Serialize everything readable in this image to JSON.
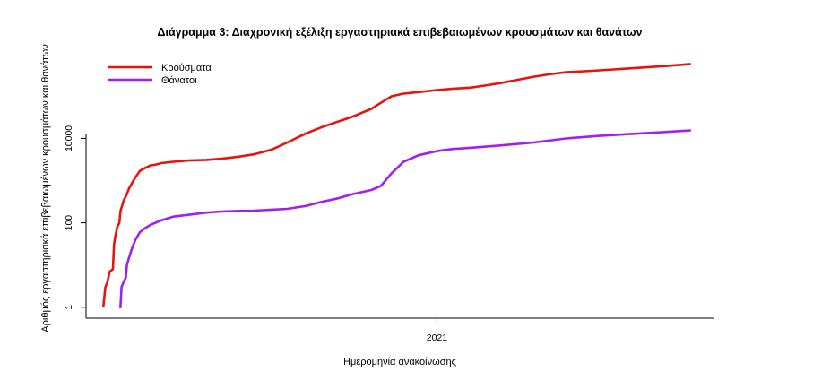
{
  "chart_data": {
    "type": "line",
    "title": "Διάγραμμα 3: Διαχρονική εξέλιξη εργαστηριακά επιβεβαιωμένων κρουσμάτων και θανάτων",
    "xlabel": "Ημερομηνία ανακοίνωσης",
    "ylabel": "Αριθμός εργαστηριακά επιβεβαιωμένων κρουσμάτων και θανάτων",
    "y_scale": "log",
    "ylim": [
      0.55,
      1500000
    ],
    "y_ticks": [
      1,
      100,
      10000
    ],
    "y_tick_labels": [
      "1",
      "100",
      "10000"
    ],
    "xlim": [
      "2020-02-10",
      "2021-09-15"
    ],
    "x_ticks": [
      "2021-01-01"
    ],
    "x_tick_labels": [
      "2021"
    ],
    "grid": false,
    "legend_position": "top-left",
    "series": [
      {
        "name": "Κρούσματα",
        "color": "#e8120e",
        "points": [
          [
            "2020-02-26",
            1
          ],
          [
            "2020-02-28",
            3
          ],
          [
            "2020-03-01",
            4
          ],
          [
            "2020-03-03",
            7
          ],
          [
            "2020-03-06",
            8
          ],
          [
            "2020-03-07",
            30
          ],
          [
            "2020-03-08",
            45
          ],
          [
            "2020-03-10",
            80
          ],
          [
            "2020-03-12",
            100
          ],
          [
            "2020-03-13",
            190
          ],
          [
            "2020-03-14",
            230
          ],
          [
            "2020-03-16",
            340
          ],
          [
            "2020-03-18",
            420
          ],
          [
            "2020-03-21",
            650
          ],
          [
            "2020-03-24",
            900
          ],
          [
            "2020-03-27",
            1200
          ],
          [
            "2020-03-31",
            1700
          ],
          [
            "2020-04-05",
            2000
          ],
          [
            "2020-04-10",
            2300
          ],
          [
            "2020-04-15",
            2400
          ],
          [
            "2020-04-20",
            2600
          ],
          [
            "2020-05-01",
            2800
          ],
          [
            "2020-05-15",
            3000
          ],
          [
            "2020-06-01",
            3100
          ],
          [
            "2020-06-15",
            3300
          ],
          [
            "2020-07-01",
            3700
          ],
          [
            "2020-07-15",
            4200
          ],
          [
            "2020-08-01",
            5500
          ],
          [
            "2020-08-15",
            8000
          ],
          [
            "2020-09-01",
            13000
          ],
          [
            "2020-09-15",
            18000
          ],
          [
            "2020-10-01",
            25000
          ],
          [
            "2020-10-15",
            33000
          ],
          [
            "2020-11-01",
            50000
          ],
          [
            "2020-11-10",
            70000
          ],
          [
            "2020-11-20",
            100000
          ],
          [
            "2020-12-01",
            115000
          ],
          [
            "2020-12-15",
            125000
          ],
          [
            "2021-01-01",
            140000
          ],
          [
            "2021-01-15",
            150000
          ],
          [
            "2021-02-01",
            160000
          ],
          [
            "2021-02-15",
            180000
          ],
          [
            "2021-03-01",
            205000
          ],
          [
            "2021-03-15",
            240000
          ],
          [
            "2021-04-01",
            290000
          ],
          [
            "2021-04-15",
            330000
          ],
          [
            "2021-05-01",
            370000
          ],
          [
            "2021-06-01",
            410000
          ],
          [
            "2021-07-01",
            460000
          ],
          [
            "2021-08-01",
            520000
          ],
          [
            "2021-08-25",
            580000
          ]
        ]
      },
      {
        "name": "Θάνατοι",
        "color": "#a020f0",
        "points": [
          [
            "2020-03-12",
            1
          ],
          [
            "2020-03-13",
            1
          ],
          [
            "2020-03-14",
            3
          ],
          [
            "2020-03-16",
            4
          ],
          [
            "2020-03-18",
            5
          ],
          [
            "2020-03-19",
            10
          ],
          [
            "2020-03-21",
            15
          ],
          [
            "2020-03-24",
            26
          ],
          [
            "2020-03-27",
            40
          ],
          [
            "2020-03-31",
            60
          ],
          [
            "2020-04-05",
            75
          ],
          [
            "2020-04-10",
            90
          ],
          [
            "2020-04-20",
            115
          ],
          [
            "2020-05-01",
            140
          ],
          [
            "2020-05-15",
            155
          ],
          [
            "2020-06-01",
            175
          ],
          [
            "2020-06-15",
            185
          ],
          [
            "2020-07-01",
            192
          ],
          [
            "2020-07-15",
            195
          ],
          [
            "2020-08-01",
            205
          ],
          [
            "2020-08-15",
            215
          ],
          [
            "2020-09-01",
            250
          ],
          [
            "2020-09-15",
            310
          ],
          [
            "2020-10-01",
            380
          ],
          [
            "2020-10-15",
            480
          ],
          [
            "2020-11-01",
            600
          ],
          [
            "2020-11-10",
            750
          ],
          [
            "2020-11-20",
            1500
          ],
          [
            "2020-12-01",
            2800
          ],
          [
            "2020-12-15",
            4000
          ],
          [
            "2021-01-01",
            5000
          ],
          [
            "2021-01-15",
            5600
          ],
          [
            "2021-02-01",
            6000
          ],
          [
            "2021-03-01",
            6800
          ],
          [
            "2021-04-01",
            8000
          ],
          [
            "2021-05-01",
            10000
          ],
          [
            "2021-06-01",
            11500
          ],
          [
            "2021-07-01",
            12800
          ],
          [
            "2021-08-01",
            14200
          ],
          [
            "2021-08-25",
            15500
          ]
        ]
      }
    ]
  }
}
